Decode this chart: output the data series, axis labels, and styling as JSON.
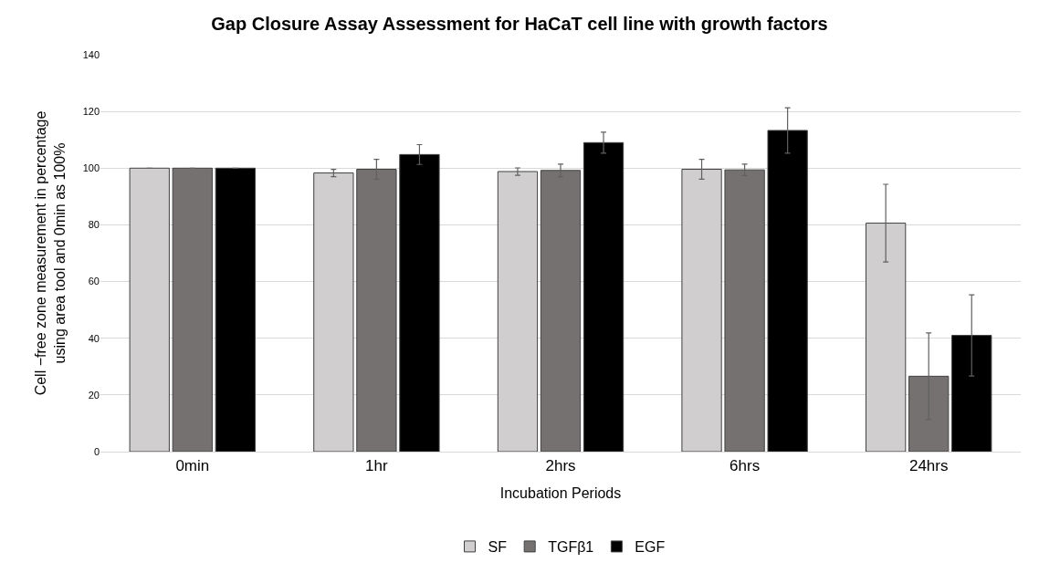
{
  "chart_data": {
    "type": "bar",
    "title": "Gap Closure Assay Assessment for HaCaT cell line with growth factors",
    "xlabel": "Incubation Periods",
    "ylabel": "Cell −free zone measurement in percentage using area tool and 0min as 100%",
    "categories": [
      "0min",
      "1hr",
      "2hrs",
      "6hrs",
      "24hrs"
    ],
    "series": [
      {
        "name": "SF",
        "color": "#d0cecf",
        "values": [
          100,
          98.3,
          98.8,
          99.6,
          80.6
        ],
        "errors": [
          0,
          1.3,
          1.3,
          3.5,
          13.7
        ]
      },
      {
        "name": "TGFβ1",
        "color": "#767171",
        "values": [
          100,
          99.6,
          99.2,
          99.4,
          26.6
        ],
        "errors": [
          0,
          3.5,
          2.2,
          2,
          15.3
        ]
      },
      {
        "name": "EGF",
        "color": "#000000",
        "values": [
          100,
          104.8,
          109,
          113.3,
          41
        ],
        "errors": [
          0,
          3.5,
          3.7,
          8,
          14.3
        ]
      }
    ],
    "ylim": [
      0,
      140
    ],
    "yticks": [
      0,
      20,
      40,
      60,
      80,
      100,
      120,
      140
    ],
    "grid": "y",
    "legend": "bottom"
  }
}
